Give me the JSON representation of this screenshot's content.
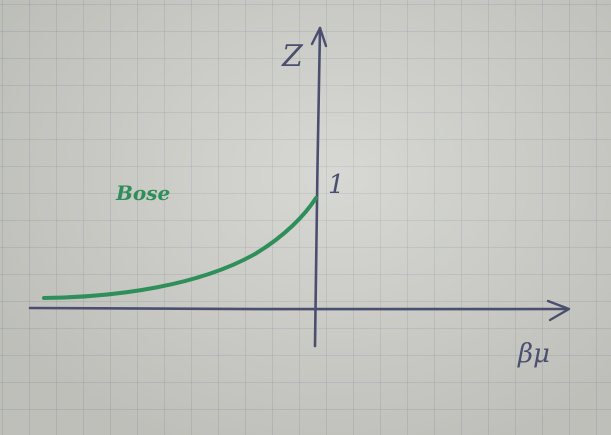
{
  "diagram": {
    "y_axis_label": "Z",
    "x_axis_label": "βμ",
    "intercept_label": "1",
    "curve_label": "Bose",
    "axis_color": "#4a4f6e",
    "curve_color": "#2f8f5a"
  }
}
